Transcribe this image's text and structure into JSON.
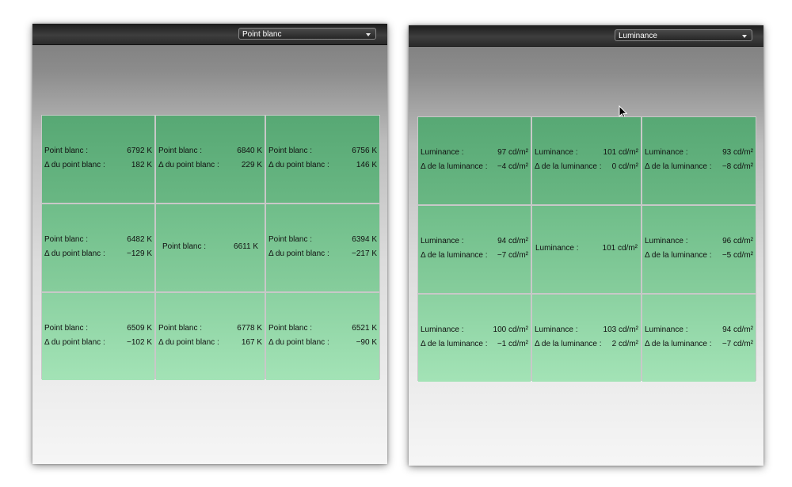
{
  "left_panel": {
    "dropdown": {
      "selected": "Point blanc"
    },
    "cells": [
      {
        "label1": "Point blanc :",
        "value1": "6792 K",
        "label2": "Δ du point blanc :",
        "value2": "182 K"
      },
      {
        "label1": "Point blanc :",
        "value1": "6840 K",
        "label2": "Δ du point blanc :",
        "value2": "229 K"
      },
      {
        "label1": "Point blanc :",
        "value1": "6756 K",
        "label2": "Δ du point blanc :",
        "value2": "146 K"
      },
      {
        "label1": "Point blanc :",
        "value1": "6482 K",
        "label2": "Δ du point blanc :",
        "value2": "−129 K"
      },
      {
        "label1": "Point blanc :",
        "value1": "6611 K"
      },
      {
        "label1": "Point blanc :",
        "value1": "6394 K",
        "label2": "Δ du point blanc :",
        "value2": "−217 K"
      },
      {
        "label1": "Point blanc :",
        "value1": "6509 K",
        "label2": "Δ du point blanc :",
        "value2": "−102 K"
      },
      {
        "label1": "Point blanc :",
        "value1": "6778 K",
        "label2": "Δ du point blanc :",
        "value2": "167 K"
      },
      {
        "label1": "Point blanc :",
        "value1": "6521 K",
        "label2": "Δ du point blanc :",
        "value2": "−90 K"
      }
    ]
  },
  "right_panel": {
    "dropdown": {
      "selected": "Luminance"
    },
    "cells": [
      {
        "label1": "Luminance :",
        "value1": "97 cd/m²",
        "label2": "Δ de la luminance :",
        "value2": "−4 cd/m²"
      },
      {
        "label1": "Luminance :",
        "value1": "101 cd/m²",
        "label2": "Δ de la luminance :",
        "value2": "0 cd/m²"
      },
      {
        "label1": "Luminance :",
        "value1": "93 cd/m²",
        "label2": "Δ de la luminance :",
        "value2": "−8 cd/m²"
      },
      {
        "label1": "Luminance :",
        "value1": "94 cd/m²",
        "label2": "Δ de la luminance :",
        "value2": "−7 cd/m²"
      },
      {
        "label1": "Luminance :",
        "value1": "101 cd/m²"
      },
      {
        "label1": "Luminance :",
        "value1": "96 cd/m²",
        "label2": "Δ de la luminance :",
        "value2": "−5 cd/m²"
      },
      {
        "label1": "Luminance :",
        "value1": "100 cd/m²",
        "label2": "Δ de la luminance :",
        "value2": "−1 cd/m²"
      },
      {
        "label1": "Luminance :",
        "value1": "103 cd/m²",
        "label2": "Δ de la luminance :",
        "value2": "2 cd/m²"
      },
      {
        "label1": "Luminance :",
        "value1": "94 cd/m²",
        "label2": "Δ de la luminance :",
        "value2": "−7 cd/m²"
      }
    ]
  },
  "icons": {
    "cursor": "arrow-cursor-icon",
    "dropdown_arrow": "chevron-down-icon"
  },
  "colors": {
    "cell_top": "#57a874",
    "cell_bottom": "#a3e3b6",
    "toolbar": "#2a2a2a"
  }
}
